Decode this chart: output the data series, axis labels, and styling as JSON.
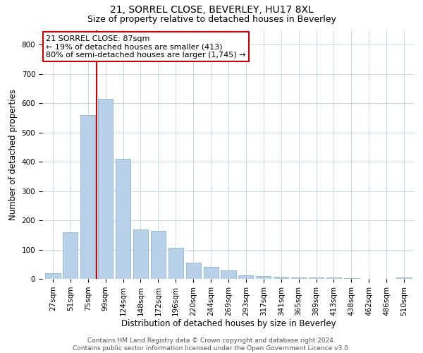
{
  "title": "21, SORREL CLOSE, BEVERLEY, HU17 8XL",
  "subtitle": "Size of property relative to detached houses in Beverley",
  "xlabel": "Distribution of detached houses by size in Beverley",
  "ylabel": "Number of detached properties",
  "footer_line1": "Contains HM Land Registry data © Crown copyright and database right 2024.",
  "footer_line2": "Contains public sector information licensed under the Open Government Licence v3.0.",
  "property_label": "21 SORREL CLOSE: 87sqm",
  "annotation_line1": "← 19% of detached houses are smaller (413)",
  "annotation_line2": "80% of semi-detached houses are larger (1,745) →",
  "bar_color": "#b8d0e8",
  "bar_edge_color": "#88b4d4",
  "vline_color": "#cc0000",
  "grid_color": "#c8d8ea",
  "background_color": "#ffffff",
  "categories": [
    "27sqm",
    "51sqm",
    "75sqm",
    "99sqm",
    "124sqm",
    "148sqm",
    "172sqm",
    "196sqm",
    "220sqm",
    "244sqm",
    "269sqm",
    "293sqm",
    "317sqm",
    "341sqm",
    "365sqm",
    "389sqm",
    "413sqm",
    "438sqm",
    "462sqm",
    "486sqm",
    "510sqm"
  ],
  "values": [
    20,
    160,
    560,
    615,
    410,
    170,
    165,
    105,
    55,
    42,
    30,
    12,
    10,
    7,
    6,
    5,
    5,
    3,
    0,
    0,
    5
  ],
  "ylim": [
    0,
    850
  ],
  "yticks": [
    0,
    100,
    200,
    300,
    400,
    500,
    600,
    700,
    800
  ],
  "vline_x": 2.5,
  "title_fontsize": 10,
  "subtitle_fontsize": 9,
  "axis_label_fontsize": 8.5,
  "tick_fontsize": 7.5,
  "footer_fontsize": 6.5,
  "annot_fontsize": 8
}
